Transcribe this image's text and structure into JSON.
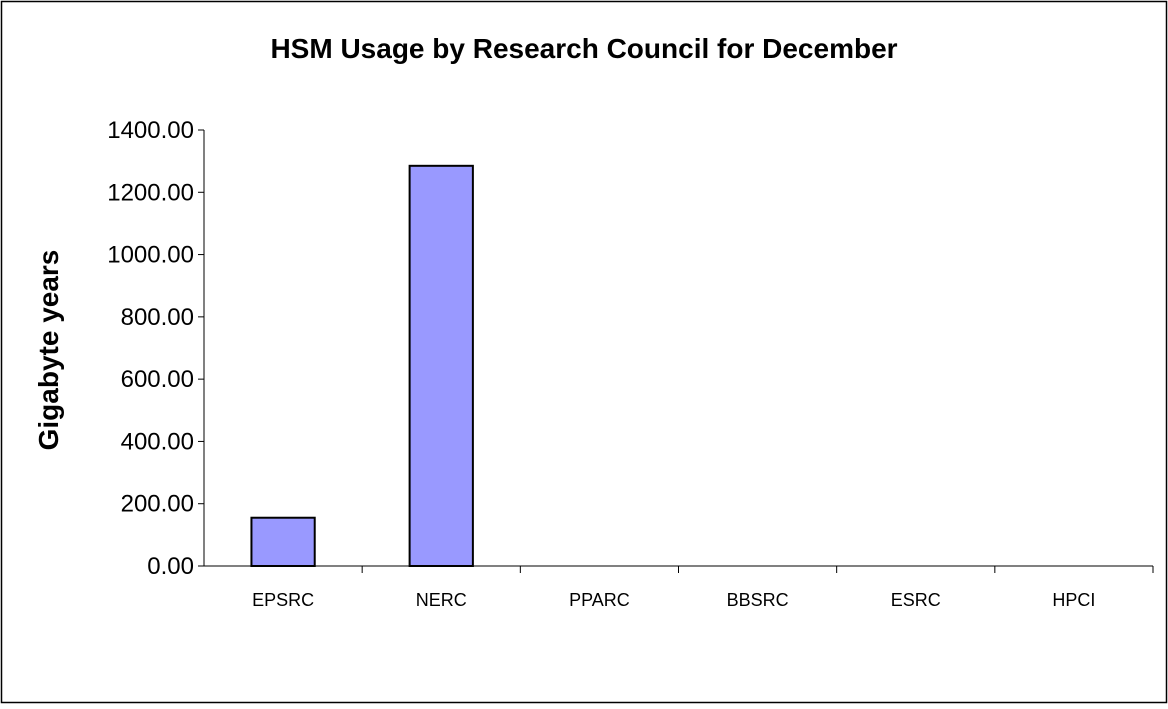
{
  "chart_data": {
    "type": "bar",
    "title": "HSM Usage by Research Council for December",
    "xlabel": "",
    "ylabel": "Gigabyte years",
    "categories": [
      "EPSRC",
      "NERC",
      "PPARC",
      "BBSRC",
      "ESRC",
      "HPCI"
    ],
    "values": [
      155,
      1285,
      0,
      0,
      0,
      0
    ],
    "ylim": [
      0,
      1400
    ],
    "yticks": [
      "0.00",
      "200.00",
      "400.00",
      "600.00",
      "800.00",
      "1000.00",
      "1200.00",
      "1400.00"
    ],
    "grid": false,
    "legend": "none",
    "bar_color": "#9999ff",
    "bar_stroke": "#000000"
  }
}
